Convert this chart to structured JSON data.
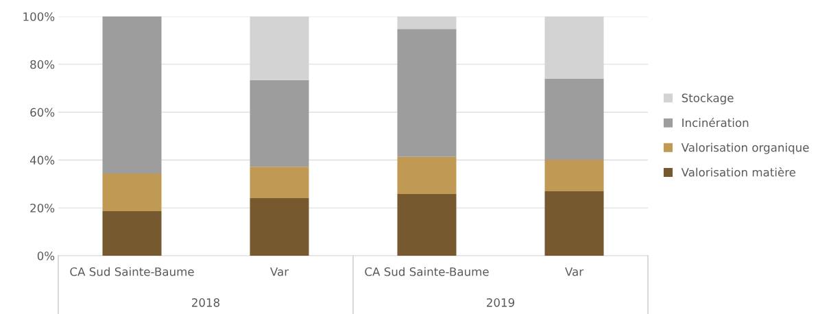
{
  "chart_data": {
    "type": "bar",
    "stacked": true,
    "categories": [
      "CA Sud Sainte-Baume",
      "Var",
      "CA Sud Sainte-Baume",
      "Var"
    ],
    "series": [
      {
        "name": "Valorisation matière",
        "color": "#76592e",
        "values": [
          18.6,
          24.1,
          25.8,
          26.9
        ]
      },
      {
        "name": "Valorisation organique",
        "color": "#c09a55",
        "values": [
          15.8,
          13.1,
          15.5,
          13.2
        ]
      },
      {
        "name": "Incinération",
        "color": "#9d9d9d",
        "values": [
          65.6,
          36.2,
          53.5,
          33.8
        ]
      },
      {
        "name": "Stockage",
        "color": "#d3d3d3",
        "values": [
          0,
          26.6,
          5.2,
          26.1
        ]
      }
    ],
    "annotations": [
      "2018",
      "2019"
    ],
    "ylim": [
      0,
      100
    ],
    "yticks": [
      {
        "value": 0,
        "label": "0%"
      },
      {
        "value": 20,
        "label": "20%"
      },
      {
        "value": 40,
        "label": "40%"
      },
      {
        "value": 60,
        "label": "60%"
      },
      {
        "value": 80,
        "label": "80%"
      },
      {
        "value": 100,
        "label": "100%"
      }
    ],
    "grid": "y",
    "legend": "right"
  }
}
